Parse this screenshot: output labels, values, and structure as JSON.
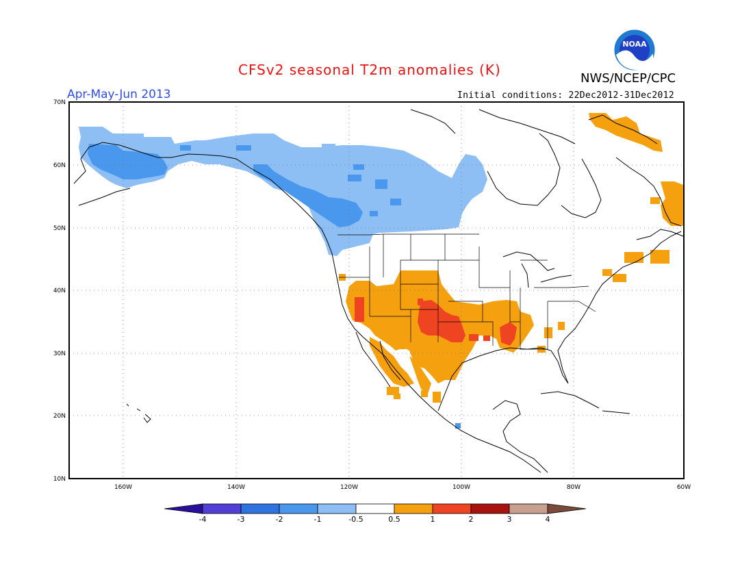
{
  "header": {
    "title": "CFSv2 seasonal T2m anomalies (K)",
    "period": "Apr-May-Jun 2013",
    "agency": "NWS/NCEP/CPC",
    "initial_conditions": "Initial conditions: 22Dec2012-31Dec2012",
    "logo_text": "NOAA"
  },
  "map": {
    "lat_labels": [
      "70N",
      "60N",
      "50N",
      "40N",
      "30N",
      "20N",
      "10N"
    ],
    "lon_labels": [
      "160W",
      "140W",
      "120W",
      "100W",
      "80W",
      "60W"
    ]
  },
  "colorbar": {
    "labels": [
      "-4",
      "-3",
      "-2",
      "-1",
      "-0.5",
      "0.5",
      "1",
      "2",
      "3",
      "4"
    ],
    "colors": [
      "#2a0f9c",
      "#5240d6",
      "#2f73e0",
      "#4a97ee",
      "#8dbff5",
      "#ffffff",
      "#f5a00f",
      "#ef4422",
      "#a8120f",
      "#c8a08f",
      "#7a4a3a"
    ]
  },
  "colors": {
    "title": "#ee1111",
    "period": "#2d4cf0",
    "light_blue": "#8dbff5",
    "mid_blue": "#4a97ee",
    "orange": "#f5a00f",
    "red": "#ef4422"
  }
}
